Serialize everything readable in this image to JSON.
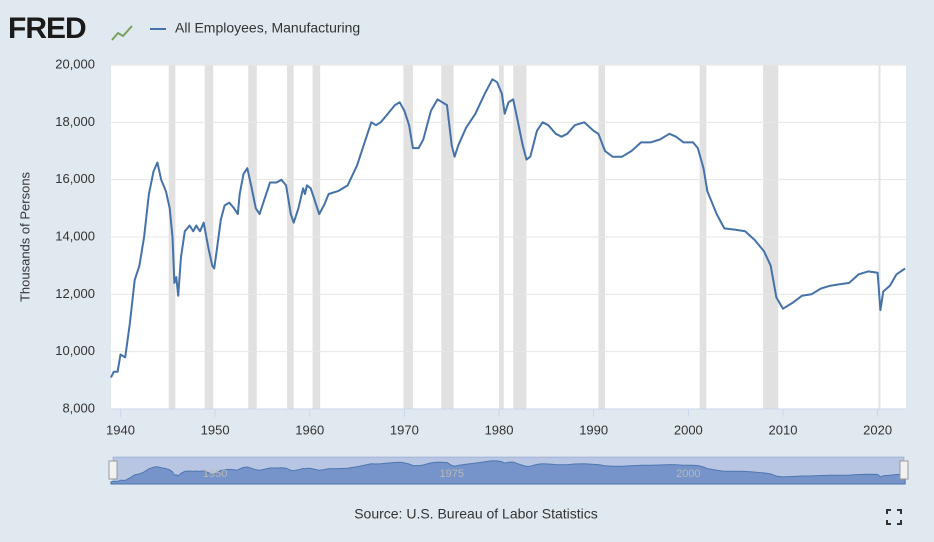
{
  "chart_data": {
    "type": "line",
    "logo": "FRED",
    "y_label": "Thousands of Persons",
    "source": "Source: U.S. Bureau of Labor Statistics",
    "x": [
      1939.0,
      1939.3,
      1939.7,
      1940.0,
      1940.5,
      1941.0,
      1941.5,
      1942.0,
      1942.5,
      1943.0,
      1943.5,
      1943.9,
      1944.3,
      1944.8,
      1945.2,
      1945.5,
      1945.7,
      1945.9,
      1946.1,
      1946.4,
      1946.8,
      1947.3,
      1947.7,
      1948.0,
      1948.4,
      1948.8,
      1949.3,
      1949.7,
      1949.9,
      1950.2,
      1950.6,
      1951.0,
      1951.5,
      1952.0,
      1952.4,
      1952.6,
      1953.0,
      1953.4,
      1953.8,
      1954.3,
      1954.7,
      1955.2,
      1955.8,
      1956.5,
      1957.0,
      1957.5,
      1958.0,
      1958.3,
      1958.8,
      1959.3,
      1959.5,
      1959.7,
      1960.1,
      1960.5,
      1961.0,
      1961.5,
      1962.0,
      1963.0,
      1964.0,
      1965.0,
      1966.0,
      1966.5,
      1967.0,
      1967.5,
      1968.0,
      1969.0,
      1969.5,
      1970.0,
      1970.5,
      1970.9,
      1971.5,
      1972.0,
      1972.8,
      1973.5,
      1974.0,
      1974.5,
      1975.0,
      1975.3,
      1975.7,
      1976.5,
      1977.5,
      1978.5,
      1979.3,
      1979.8,
      1980.3,
      1980.6,
      1981.0,
      1981.5,
      1982.0,
      1982.5,
      1982.9,
      1983.3,
      1984.0,
      1984.6,
      1985.2,
      1986.0,
      1986.6,
      1987.2,
      1988.0,
      1989.0,
      1990.0,
      1990.5,
      1991.2,
      1992.0,
      1993.0,
      1994.0,
      1995.0,
      1996.0,
      1997.0,
      1998.0,
      1998.7,
      1999.5,
      2000.5,
      2001.0,
      2001.6,
      2002.0,
      2003.0,
      2003.8,
      2005.0,
      2006.0,
      2007.0,
      2008.0,
      2008.7,
      2009.3,
      2010.0,
      2011.0,
      2012.0,
      2013.0,
      2014.0,
      2015.0,
      2016.0,
      2017.0,
      2018.0,
      2019.0,
      2020.0,
      2020.3,
      2020.6,
      2021.3,
      2022.0,
      2022.9
    ],
    "series": [
      {
        "name": "All Employees, Manufacturing",
        "color": "#4572a7",
        "values": [
          9100,
          9300,
          9300,
          9900,
          9800,
          11000,
          12500,
          13000,
          14000,
          15500,
          16300,
          16600,
          16000,
          15600,
          15000,
          14000,
          12400,
          12600,
          11950,
          13300,
          14200,
          14400,
          14200,
          14400,
          14200,
          14500,
          13600,
          13000,
          12900,
          13600,
          14600,
          15100,
          15200,
          15000,
          14800,
          15500,
          16200,
          16400,
          15800,
          15000,
          14800,
          15300,
          15900,
          15900,
          16000,
          15800,
          14800,
          14500,
          15000,
          15700,
          15500,
          15800,
          15700,
          15300,
          14800,
          15100,
          15500,
          15600,
          15800,
          16500,
          17500,
          18000,
          17900,
          18000,
          18200,
          18600,
          18700,
          18400,
          17900,
          17100,
          17100,
          17400,
          18400,
          18800,
          18700,
          18600,
          17200,
          16800,
          17200,
          17800,
          18300,
          19000,
          19500,
          19400,
          19000,
          18300,
          18700,
          18800,
          18000,
          17200,
          16700,
          16800,
          17700,
          18000,
          17900,
          17600,
          17500,
          17600,
          17900,
          18000,
          17700,
          17600,
          17000,
          16800,
          16800,
          17000,
          17300,
          17300,
          17400,
          17600,
          17500,
          17300,
          17300,
          17100,
          16400,
          15600,
          14800,
          14300,
          14250,
          14200,
          13900,
          13500,
          13000,
          11900,
          11500,
          11700,
          11950,
          12000,
          12200,
          12300,
          12350,
          12400,
          12700,
          12800,
          12750,
          11450,
          12100,
          12300,
          12700,
          12900
        ]
      }
    ],
    "xlim": [
      1939,
      2023
    ],
    "xticks": [
      1940,
      1950,
      1960,
      1970,
      1980,
      1990,
      2000,
      2010,
      2020
    ],
    "ylim": [
      8000,
      20000
    ],
    "yticks": [
      {
        "value": 8000,
        "label": "8,000"
      },
      {
        "value": 10000,
        "label": "10,000"
      },
      {
        "value": 12000,
        "label": "12,000"
      },
      {
        "value": 14000,
        "label": "14,000"
      },
      {
        "value": 16000,
        "label": "16,000"
      },
      {
        "value": 18000,
        "label": "18,000"
      },
      {
        "value": 20000,
        "label": "20,000"
      }
    ],
    "grid": true,
    "recessions": [
      [
        1945.1,
        1945.8
      ],
      [
        1948.9,
        1949.8
      ],
      [
        1953.5,
        1954.4
      ],
      [
        1957.6,
        1958.3
      ],
      [
        1960.3,
        1961.1
      ],
      [
        1969.9,
        1970.9
      ],
      [
        1973.9,
        1975.2
      ],
      [
        1980.0,
        1980.5
      ],
      [
        1981.5,
        1982.9
      ],
      [
        1990.5,
        1991.2
      ],
      [
        2001.2,
        2001.9
      ],
      [
        2007.9,
        2009.5
      ],
      [
        2020.1,
        2020.3
      ]
    ],
    "navigator_ticks": [
      1950,
      1975,
      2000
    ]
  }
}
